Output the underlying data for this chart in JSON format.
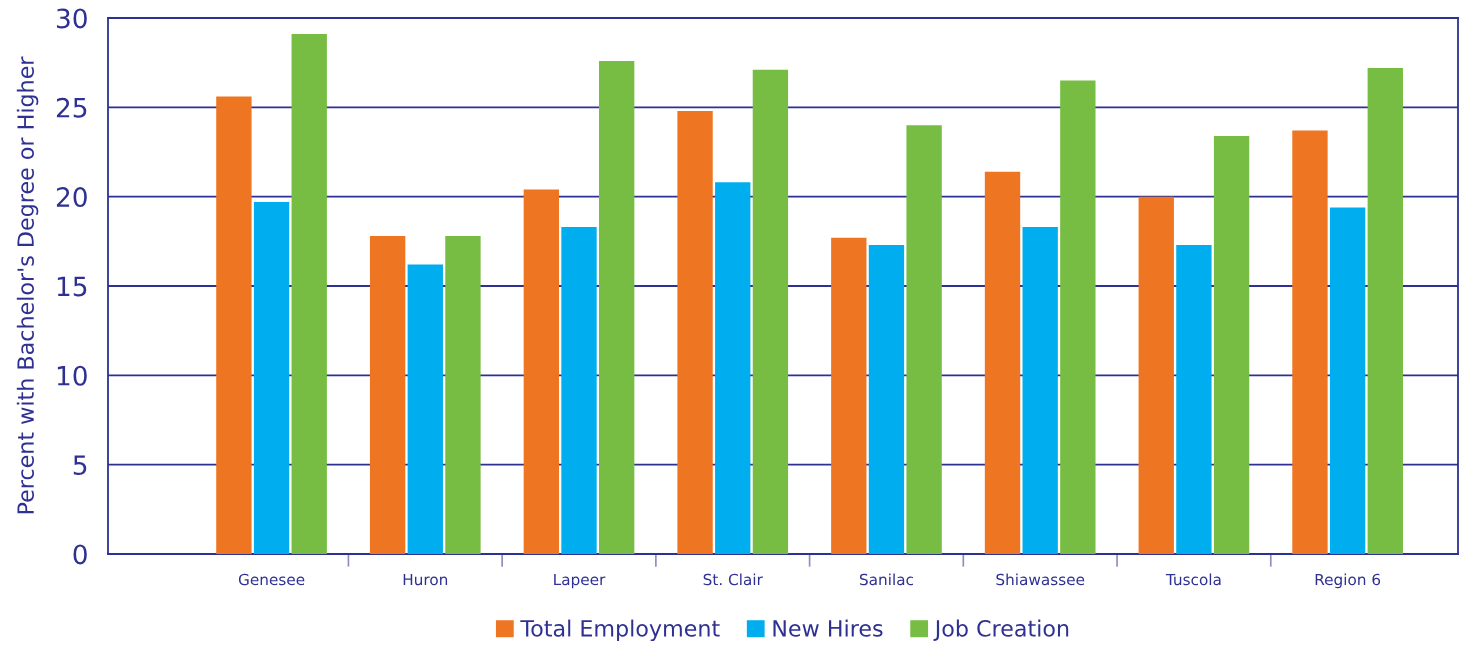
{
  "chart_data": {
    "type": "bar",
    "ylabel": "Percent with Bachelor's Degree or Higher",
    "categories": [
      "Genesee",
      "Huron",
      "Lapeer",
      "St. Clair",
      "Sanilac",
      "Shiawassee",
      "Tuscola",
      "Region 6"
    ],
    "series": [
      {
        "name": "Total Employment",
        "color": "#ee7623",
        "values": [
          25.6,
          17.8,
          20.4,
          24.8,
          17.7,
          21.4,
          20.0,
          23.7
        ]
      },
      {
        "name": "New Hires",
        "color": "#00aeef",
        "values": [
          19.7,
          16.2,
          18.3,
          20.8,
          17.3,
          18.3,
          17.3,
          19.4
        ]
      },
      {
        "name": "Job Creation",
        "color": "#77bd43",
        "values": [
          29.1,
          17.8,
          27.6,
          27.1,
          24.0,
          26.5,
          23.4,
          27.2
        ]
      }
    ],
    "ylim": [
      0,
      30
    ],
    "yticks": [
      0,
      5,
      10,
      15,
      20,
      25,
      30
    ],
    "grid": "y",
    "legend": "bottom"
  }
}
